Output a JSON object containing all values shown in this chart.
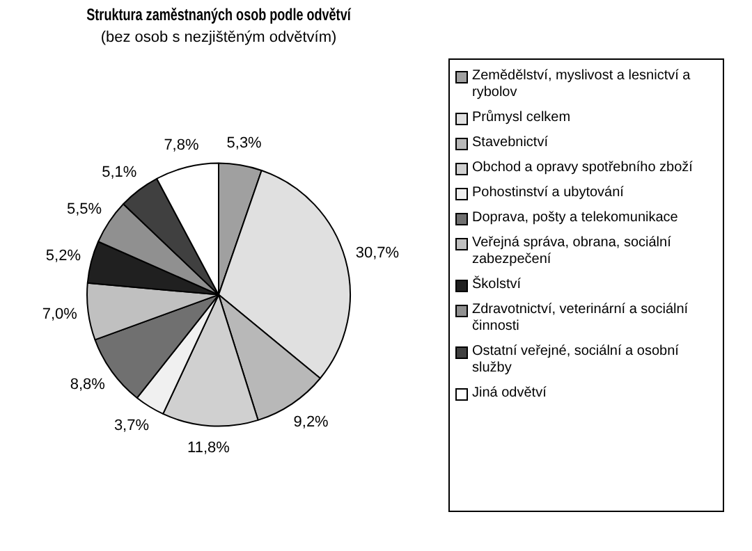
{
  "chart_data": {
    "type": "pie",
    "title": "Struktura zaměstnaných osob podle odvětví",
    "subtitle": "(bez osob s nezjištěným odvětvím)",
    "categories": [
      "Zemědělství, myslivost a lesnictví a rybolov",
      "Průmysl celkem",
      "Stavebnictví",
      "Obchod a opravy spotřebního zboží",
      "Pohostinství a ubytování",
      "Doprava, pošty a telekomunikace",
      "Veřejná správa, obrana, sociální zabezpečení",
      "Školství",
      "Zdravotnictví, veterinární a sociální činnosti",
      "Ostatní veřejné, sociální a osobní služby",
      "Jiná odvětví"
    ],
    "values": [
      5.3,
      30.7,
      9.2,
      11.8,
      3.7,
      8.8,
      7.0,
      5.2,
      5.5,
      5.1,
      7.8
    ],
    "value_labels": [
      "5,3%",
      "30,7%",
      "9,2%",
      "11,8%",
      "3,7%",
      "8,8%",
      "7,0%",
      "5,2%",
      "5,5%",
      "5,1%",
      "7,8%"
    ],
    "colors": [
      "#a0a0a0",
      "#e0e0e0",
      "#b8b8b8",
      "#d0d0d0",
      "#f0f0f0",
      "#707070",
      "#c0c0c0",
      "#202020",
      "#909090",
      "#404040",
      "#ffffff"
    ],
    "legend": "right"
  }
}
